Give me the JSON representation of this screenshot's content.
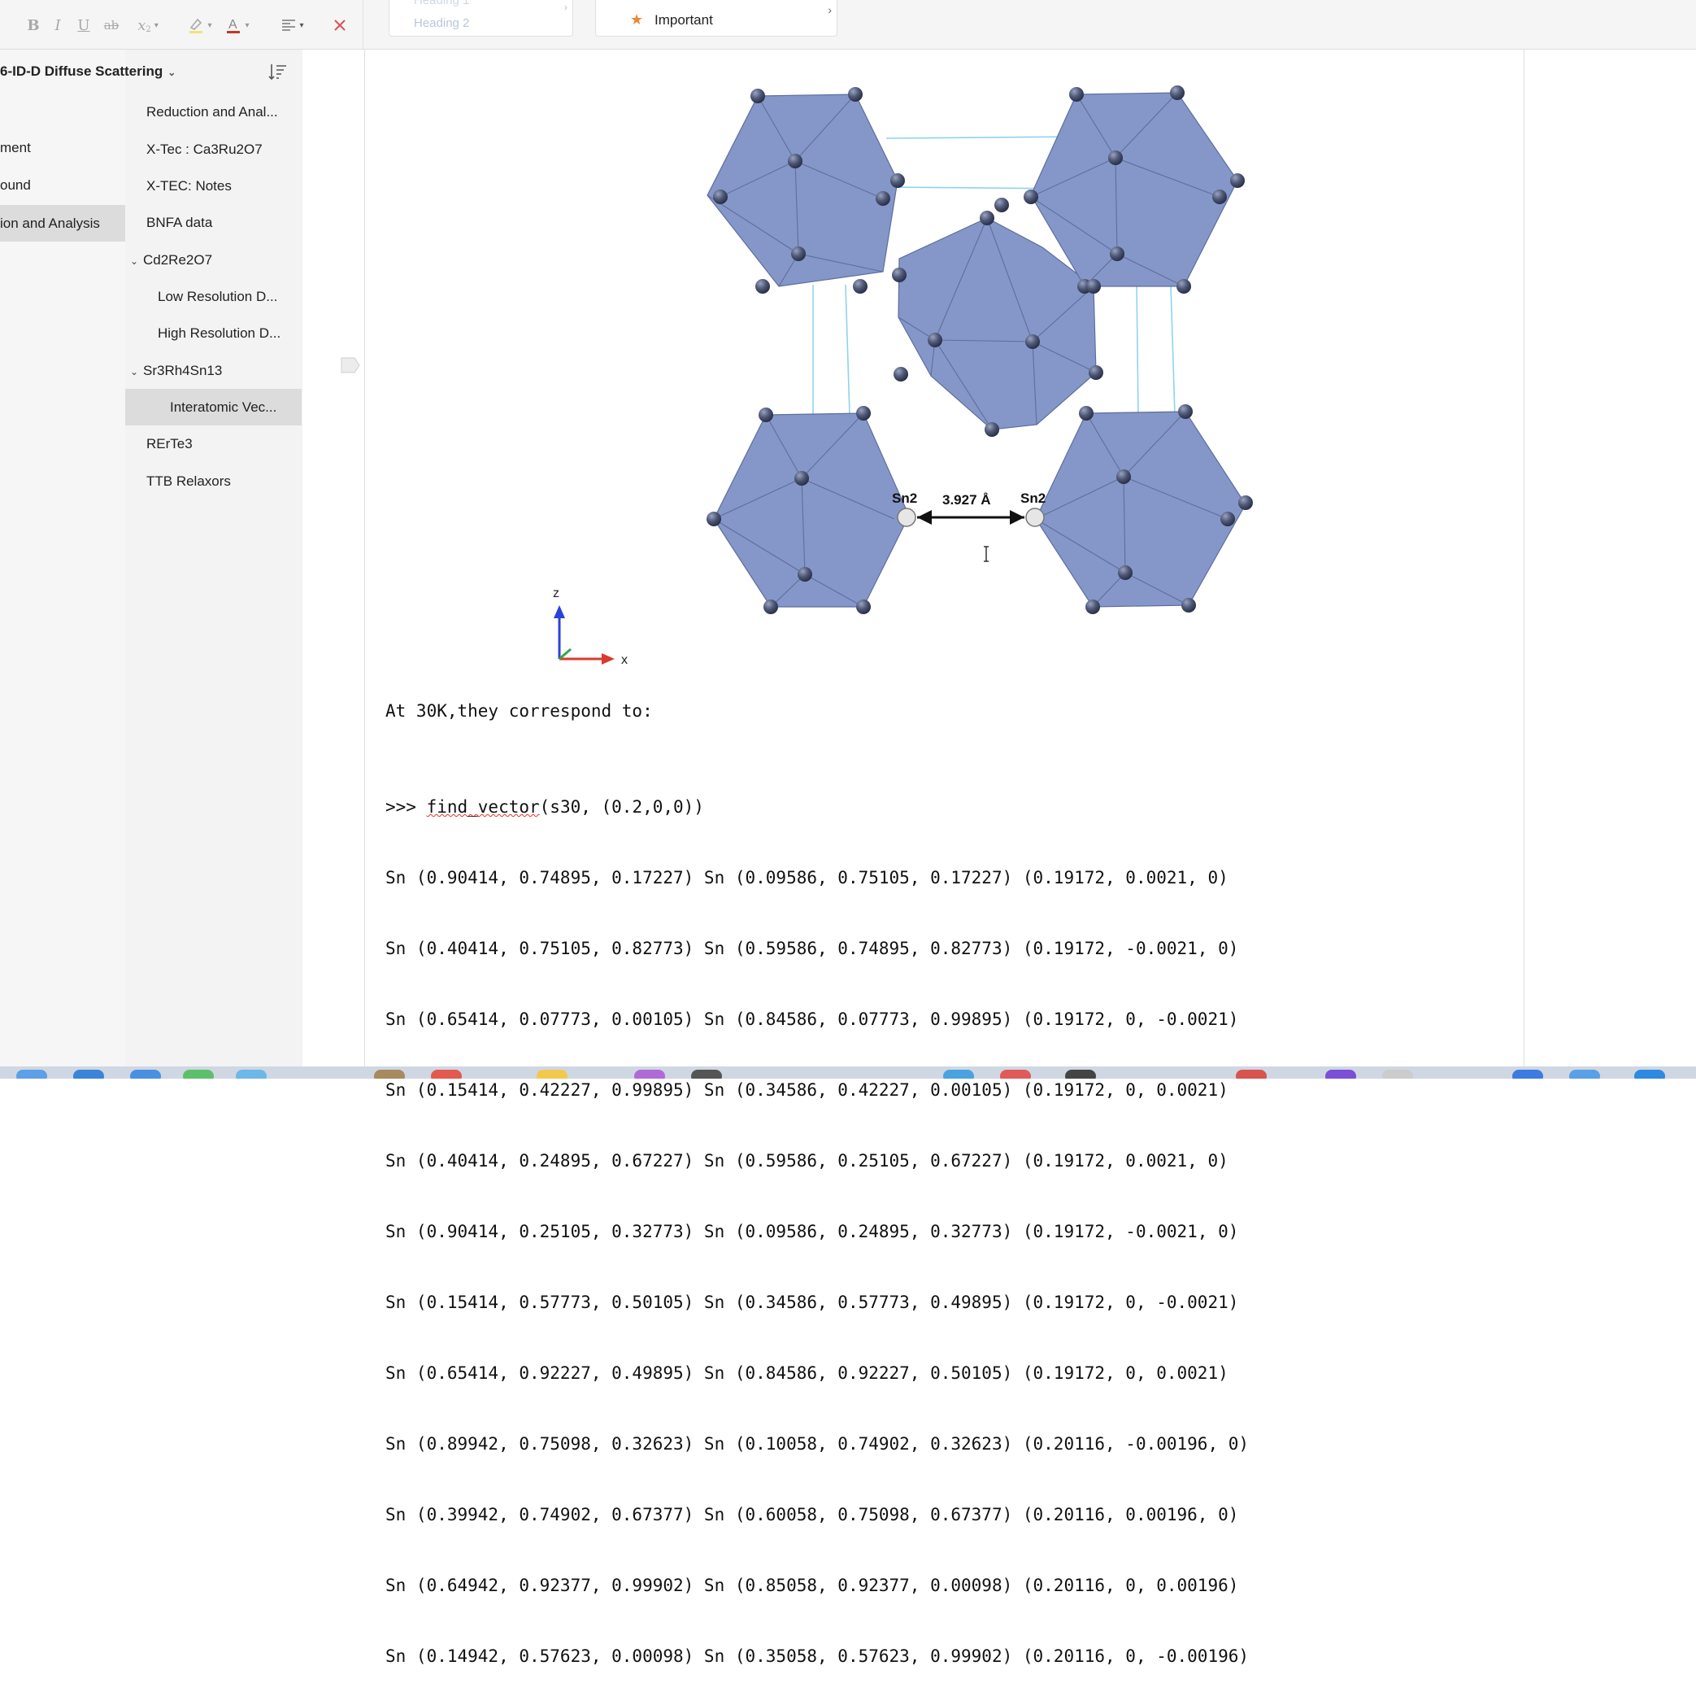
{
  "toolbar": {
    "bold": "B",
    "italic": "I",
    "underline": "U",
    "strike": "ab",
    "subscript": "x",
    "styles": {
      "heading1": "Heading 1",
      "heading2": "Heading 2"
    },
    "tag": {
      "label": "Important"
    }
  },
  "notebook": {
    "title": "6-ID-D Diffuse Scattering",
    "sections": [
      {
        "label": "ment"
      },
      {
        "label": "ound"
      },
      {
        "label": "ion and Analysis",
        "selected": true
      }
    ],
    "pages": [
      {
        "label": "Reduction and Anal...",
        "level": 0
      },
      {
        "label": "X-Tec : Ca3Ru2O7",
        "level": 0
      },
      {
        "label": "X-TEC: Notes",
        "level": 0
      },
      {
        "label": "BNFA data",
        "level": 0
      },
      {
        "label": "Cd2Re2O7",
        "level": 0,
        "expanded": true
      },
      {
        "label": "Low Resolution D...",
        "level": 1
      },
      {
        "label": "High Resolution D...",
        "level": 1
      },
      {
        "label": "Sr3Rh4Sn13",
        "level": 0,
        "expanded": true
      },
      {
        "label": "Interatomic Vec...",
        "level": 2,
        "selected": true
      },
      {
        "label": "RErTe3",
        "level": 0
      },
      {
        "label": "TTB Relaxors",
        "level": 0
      }
    ]
  },
  "figure": {
    "atom_left": "Sn2",
    "atom_right": "Sn2",
    "distance": "3.927 Å",
    "axis_z": "z",
    "axis_x": "x",
    "colors": {
      "polyhedron": "#8497c8",
      "atom": "#4d5775",
      "cell": "#8fd3ee"
    }
  },
  "note": {
    "caption": "At 30K,they correspond to:",
    "command_prompt": ">>> ",
    "command_func": "find_vector",
    "command_args": "(s30, (0.2,0,0))",
    "lines": [
      "Sn (0.90414, 0.74895, 0.17227) Sn (0.09586, 0.75105, 0.17227) (0.19172, 0.0021, 0)",
      "Sn (0.40414, 0.75105, 0.82773) Sn (0.59586, 0.74895, 0.82773) (0.19172, -0.0021, 0)",
      "Sn (0.65414, 0.07773, 0.00105) Sn (0.84586, 0.07773, 0.99895) (0.19172, 0, -0.0021)",
      "Sn (0.15414, 0.42227, 0.99895) Sn (0.34586, 0.42227, 0.00105) (0.19172, 0, 0.0021)",
      "Sn (0.40414, 0.24895, 0.67227) Sn (0.59586, 0.25105, 0.67227) (0.19172, 0.0021, 0)",
      "Sn (0.90414, 0.25105, 0.32773) Sn (0.09586, 0.24895, 0.32773) (0.19172, -0.0021, 0)",
      "Sn (0.15414, 0.57773, 0.50105) Sn (0.34586, 0.57773, 0.49895) (0.19172, 0, -0.0021)",
      "Sn (0.65414, 0.92227, 0.49895) Sn (0.84586, 0.92227, 0.50105) (0.19172, 0, 0.0021)",
      "Sn (0.89942, 0.75098, 0.32623) Sn (0.10058, 0.74902, 0.32623) (0.20116, -0.00196, 0)",
      "Sn (0.39942, 0.74902, 0.67377) Sn (0.60058, 0.75098, 0.67377) (0.20116, 0.00196, 0)",
      "Sn (0.64942, 0.92377, 0.99902) Sn (0.85058, 0.92377, 0.00098) (0.20116, 0, 0.00196)",
      "Sn (0.14942, 0.57623, 0.00098) Sn (0.35058, 0.57623, 0.99902) (0.20116, 0, -0.00196)"
    ]
  }
}
